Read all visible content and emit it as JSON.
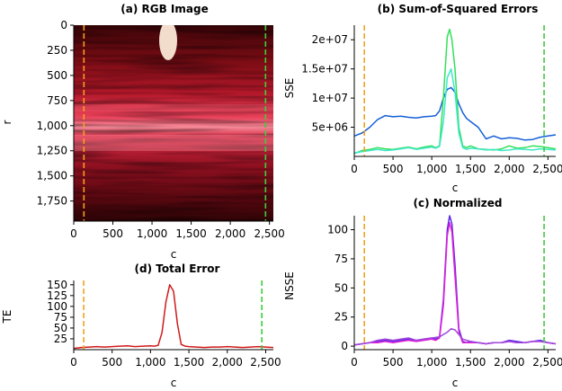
{
  "chart_data": [
    {
      "id": "image",
      "type": "heatmap",
      "title": "(a) RGB Image",
      "xlabel": "c",
      "ylabel": "r",
      "xlim": [
        0,
        2550
      ],
      "ylim": [
        1950,
        0
      ],
      "xticks": [
        "0",
        "500",
        "1,000",
        "1,500",
        "2,000",
        "2,500"
      ],
      "xtick_values": [
        0,
        500,
        1000,
        1500,
        2000,
        2500
      ],
      "yticks": [
        "0",
        "250",
        "500",
        "750",
        "1,000",
        "1,250",
        "1,500",
        "1,750"
      ],
      "ytick_values": [
        0,
        250,
        500,
        750,
        1000,
        1250,
        1500,
        1750
      ],
      "vlines": [
        {
          "x": 130,
          "color": "#f5a020"
        },
        {
          "x": 2450,
          "color": "#3dcc3d"
        }
      ]
    },
    {
      "id": "sse",
      "type": "line",
      "title": "(b) Sum-of-Squared Errors",
      "xlabel": "c",
      "ylabel": "SSE",
      "xlim": [
        0,
        2600
      ],
      "ylim": [
        0,
        22500000
      ],
      "xticks": [
        "0",
        "500",
        "1,000",
        "1,500",
        "2,000",
        "2,500"
      ],
      "xtick_values": [
        0,
        500,
        1000,
        1500,
        2000,
        2500
      ],
      "yticks": [
        "5e+06",
        "1e+07",
        "1.5e+07",
        "2e+07"
      ],
      "ytick_values": [
        5000000,
        10000000,
        15000000,
        20000000
      ],
      "vlines": [
        {
          "x": 130,
          "color": "#f5a020"
        },
        {
          "x": 2450,
          "color": "#3dcc3d"
        }
      ],
      "series": [
        {
          "name": "blue",
          "color": "#1560d8",
          "x": [
            0,
            100,
            200,
            300,
            400,
            500,
            600,
            700,
            800,
            900,
            1000,
            1050,
            1100,
            1150,
            1200,
            1250,
            1300,
            1350,
            1400,
            1450,
            1500,
            1600,
            1700,
            1800,
            1900,
            2000,
            2100,
            2200,
            2300,
            2400,
            2500,
            2600
          ],
          "values": [
            3500000,
            4000000,
            5000000,
            6300000,
            7000000,
            6800000,
            6900000,
            6700000,
            6600000,
            6800000,
            6900000,
            7000000,
            7800000,
            10000000,
            11500000,
            11800000,
            11000000,
            9000000,
            7500000,
            6500000,
            6000000,
            5000000,
            3000000,
            3500000,
            3000000,
            3200000,
            3100000,
            2800000,
            2900000,
            3300000,
            3500000,
            3700000
          ]
        },
        {
          "name": "green",
          "color": "#33e05a",
          "x": [
            0,
            100,
            200,
            300,
            400,
            500,
            600,
            700,
            800,
            900,
            1000,
            1050,
            1100,
            1150,
            1200,
            1230,
            1260,
            1300,
            1350,
            1400,
            1450,
            1500,
            1600,
            1700,
            1800,
            1900,
            2000,
            2100,
            2200,
            2300,
            2400,
            2500,
            2600
          ],
          "values": [
            500000,
            1000000,
            1200000,
            1500000,
            1300000,
            1200000,
            1400000,
            1600000,
            1300000,
            1600000,
            1800000,
            1500000,
            1800000,
            10000000,
            20500000,
            21800000,
            20000000,
            15000000,
            5000000,
            1800000,
            1500000,
            1800000,
            1300000,
            1200000,
            1100000,
            1300000,
            1800000,
            1400000,
            1500000,
            1800000,
            1700000,
            1500000,
            1300000
          ]
        },
        {
          "name": "cyan",
          "color": "#3ee8c8",
          "x": [
            0,
            100,
            200,
            300,
            400,
            500,
            600,
            700,
            800,
            900,
            1000,
            1050,
            1100,
            1150,
            1200,
            1250,
            1300,
            1350,
            1400,
            1450,
            1500,
            1600,
            1700,
            1800,
            1900,
            2000,
            2100,
            2200,
            2300,
            2400,
            2500,
            2600
          ],
          "values": [
            600000,
            800000,
            1000000,
            1200000,
            1000000,
            1100000,
            1300000,
            1500000,
            1200000,
            1400000,
            1600000,
            1400000,
            1700000,
            6000000,
            13500000,
            15000000,
            11000000,
            4000000,
            1500000,
            1200000,
            1400000,
            1300000,
            1100000,
            1200000,
            1000000,
            1100000,
            1300000,
            1200000,
            1100000,
            1300000,
            1200000,
            1100000
          ]
        }
      ]
    },
    {
      "id": "te",
      "type": "line",
      "title": "(d) Total Error",
      "xlabel": "c",
      "ylabel": "TE",
      "xlim": [
        0,
        2600
      ],
      "ylim": [
        0,
        160
      ],
      "xticks": [
        "0",
        "500",
        "1,000",
        "1,500",
        "2,000",
        "2,500"
      ],
      "xtick_values": [
        0,
        500,
        1000,
        1500,
        2000,
        2500
      ],
      "yticks": [
        "25",
        "50",
        "75",
        "100",
        "125",
        "150"
      ],
      "ytick_values": [
        25,
        50,
        75,
        100,
        125,
        150
      ],
      "vlines": [
        {
          "x": 130,
          "color": "#f5a020"
        },
        {
          "x": 2450,
          "color": "#3dcc3d"
        }
      ],
      "series": [
        {
          "name": "total",
          "color": "#d11a1a",
          "x": [
            0,
            100,
            200,
            300,
            400,
            500,
            600,
            700,
            800,
            900,
            1000,
            1050,
            1100,
            1150,
            1200,
            1250,
            1300,
            1350,
            1400,
            1450,
            1500,
            1600,
            1700,
            1800,
            1900,
            2000,
            2100,
            2200,
            2300,
            2400,
            2500,
            2600
          ],
          "values": [
            3,
            5,
            6,
            7,
            6,
            7,
            8,
            9,
            7,
            8,
            9,
            8,
            10,
            40,
            110,
            150,
            135,
            60,
            12,
            8,
            7,
            6,
            5,
            6,
            6,
            7,
            6,
            5,
            6,
            7,
            6,
            5
          ]
        }
      ]
    },
    {
      "id": "nsse",
      "type": "line",
      "title": "(c) Normalized",
      "xlabel": "c",
      "ylabel": "NSSE",
      "xlim": [
        0,
        2600
      ],
      "ylim": [
        -3,
        112
      ],
      "xticks": [
        "0",
        "500",
        "1,000",
        "1,500",
        "2,000",
        "2,500"
      ],
      "xtick_values": [
        0,
        500,
        1000,
        1500,
        2000,
        2500
      ],
      "yticks": [
        "0",
        "25",
        "50",
        "75",
        "100"
      ],
      "ytick_values": [
        0,
        25,
        50,
        75,
        100
      ],
      "vlines": [
        {
          "x": 130,
          "color": "#f5a020"
        },
        {
          "x": 2450,
          "color": "#3dcc3d"
        }
      ],
      "series": [
        {
          "name": "blue-violet",
          "color": "#5a28e6",
          "x": [
            0,
            100,
            200,
            300,
            400,
            500,
            600,
            700,
            800,
            900,
            1000,
            1050,
            1100,
            1150,
            1200,
            1230,
            1260,
            1300,
            1350,
            1400,
            1450,
            1500,
            1600,
            1700,
            1800,
            1900,
            2000,
            2100,
            2200,
            2300,
            2400,
            2500,
            2600
          ],
          "values": [
            1,
            2,
            3,
            4,
            5,
            4,
            5,
            6,
            5,
            6,
            7,
            6,
            8,
            40,
            100,
            112,
            105,
            70,
            15,
            4,
            3,
            4,
            3,
            2,
            3,
            3,
            5,
            4,
            3,
            4,
            5,
            3,
            2
          ]
        },
        {
          "name": "magenta",
          "color": "#e01ed8",
          "x": [
            0,
            100,
            200,
            300,
            400,
            500,
            600,
            700,
            800,
            900,
            1000,
            1050,
            1100,
            1150,
            1200,
            1230,
            1260,
            1300,
            1350,
            1400,
            1450,
            1500,
            1600,
            1700,
            1800,
            1900,
            2000,
            2100,
            2200,
            2300,
            2400,
            2500,
            2600
          ],
          "values": [
            1,
            2,
            3,
            3,
            4,
            3,
            4,
            5,
            4,
            5,
            6,
            5,
            7,
            35,
            95,
            106,
            98,
            60,
            12,
            3,
            3,
            3,
            3,
            2,
            3,
            3,
            4,
            3,
            3,
            4,
            4,
            3,
            2
          ]
        },
        {
          "name": "violet-low",
          "color": "#a046dc",
          "x": [
            0,
            100,
            200,
            300,
            400,
            500,
            600,
            700,
            800,
            900,
            1000,
            1100,
            1200,
            1250,
            1300,
            1350,
            1400,
            1500,
            1600,
            1700,
            1800,
            1900,
            2000,
            2100,
            2200,
            2300,
            2400,
            2500,
            2600
          ],
          "values": [
            1,
            2,
            3,
            5,
            6,
            5,
            6,
            7,
            5,
            6,
            7,
            8,
            12,
            15,
            14,
            10,
            6,
            4,
            3,
            2,
            3,
            3,
            4,
            3,
            3,
            4,
            4,
            3,
            2
          ]
        }
      ]
    }
  ]
}
